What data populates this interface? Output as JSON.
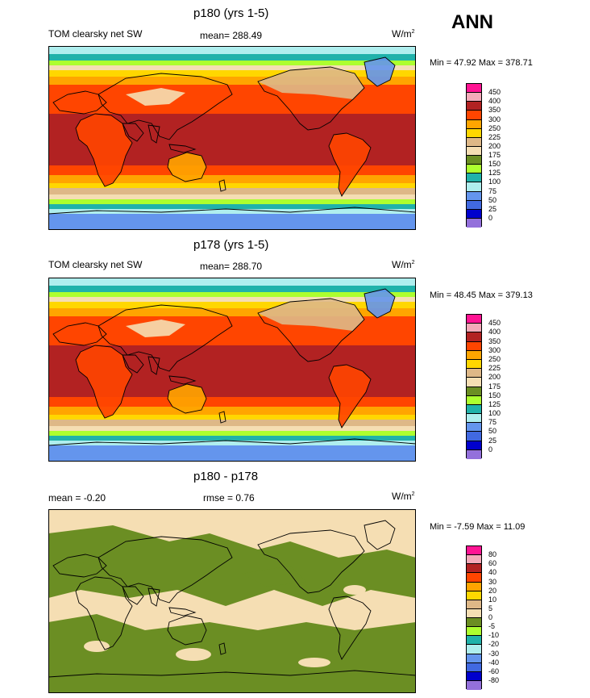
{
  "season": "ANN",
  "units_base": "W/m",
  "units_exp": "2",
  "panels": [
    {
      "title": "p180 (yrs 1-5)",
      "left_label": "TOM clearsky net SW",
      "center_label": "mean= 288.49",
      "minmax": "Min =  47.92 Max = 378.71",
      "kind": "field"
    },
    {
      "title": "p178 (yrs 1-5)",
      "left_label": "TOM clearsky net SW",
      "center_label": "mean= 288.70",
      "minmax": "Min =  48.45 Max = 379.13",
      "kind": "field"
    },
    {
      "title": "p180 - p178",
      "left_label": "mean =  -0.20",
      "center_label": "rmse =   0.76",
      "minmax": "Min =  -7.59 Max =  11.09",
      "kind": "diff"
    }
  ],
  "chart_data": [
    {
      "type": "heatmap",
      "title": "p180 (yrs 1-5)",
      "variable": "TOM clearsky net SW",
      "units": "W/m2",
      "mean": 288.49,
      "min": 47.92,
      "max": 378.71,
      "colorbar_levels": [
        "450",
        "400",
        "350",
        "300",
        "250",
        "225",
        "200",
        "175",
        "150",
        "125",
        "100",
        "75",
        "50",
        "25",
        "0"
      ],
      "colorbar_colors": [
        "#ff1493",
        "#f4aab9",
        "#b22222",
        "#ff4500",
        "#ffa500",
        "#ffd700",
        "#deb887",
        "#f5deb3",
        "#6b8e23",
        "#adff2f",
        "#20b2aa",
        "#afeeee",
        "#6495ed",
        "#4169e1",
        "#0000cd",
        "#9370db"
      ]
    },
    {
      "type": "heatmap",
      "title": "p178 (yrs 1-5)",
      "variable": "TOM clearsky net SW",
      "units": "W/m2",
      "mean": 288.7,
      "min": 48.45,
      "max": 379.13,
      "colorbar_levels": [
        "450",
        "400",
        "350",
        "300",
        "250",
        "225",
        "200",
        "175",
        "150",
        "125",
        "100",
        "75",
        "50",
        "25",
        "0"
      ],
      "colorbar_colors": [
        "#ff1493",
        "#f4aab9",
        "#b22222",
        "#ff4500",
        "#ffa500",
        "#ffd700",
        "#deb887",
        "#f5deb3",
        "#6b8e23",
        "#adff2f",
        "#20b2aa",
        "#afeeee",
        "#6495ed",
        "#4169e1",
        "#0000cd",
        "#9370db"
      ]
    },
    {
      "type": "heatmap",
      "title": "p180 - p178",
      "units": "W/m2",
      "mean": -0.2,
      "rmse": 0.76,
      "min": -7.59,
      "max": 11.09,
      "colorbar_levels": [
        "80",
        "60",
        "40",
        "30",
        "20",
        "10",
        "5",
        "0",
        "-5",
        "-10",
        "-20",
        "-30",
        "-40",
        "-60",
        "-80"
      ],
      "colorbar_colors": [
        "#ff1493",
        "#f4aab9",
        "#b22222",
        "#ff4500",
        "#ffa500",
        "#ffd700",
        "#deb887",
        "#f5deb3",
        "#6b8e23",
        "#adff2f",
        "#20b2aa",
        "#afeeee",
        "#6495ed",
        "#4169e1",
        "#0000cd",
        "#9370db"
      ]
    }
  ]
}
